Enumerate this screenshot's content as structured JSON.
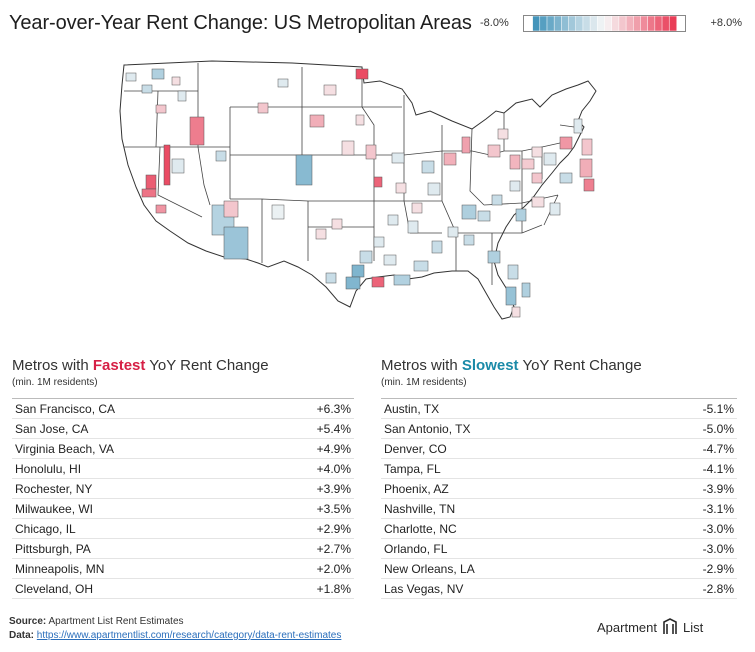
{
  "title": "Year-over-Year Rent Change: US Metropolitan Areas",
  "legend": {
    "min_label": "-8.0%",
    "max_label": "+8.0%",
    "min_color": "#3a8fb7",
    "mid_color": "#f7f7f7",
    "max_color": "#e8334f"
  },
  "map_colors": {
    "state_stroke": "#333333",
    "county_stroke": "#777777",
    "land": "#ffffff"
  },
  "fastest": {
    "head_pre": "Metros with ",
    "head_hl": "Fastest",
    "head_post": " YoY Rent Change",
    "sub": "(min. 1M residents)",
    "rows": [
      {
        "name": "San Francisco, CA",
        "value": "+6.3%"
      },
      {
        "name": "San Jose, CA",
        "value": "+5.4%"
      },
      {
        "name": "Virginia Beach, VA",
        "value": "+4.9%"
      },
      {
        "name": "Honolulu, HI",
        "value": "+4.0%"
      },
      {
        "name": "Rochester, NY",
        "value": "+3.9%"
      },
      {
        "name": "Milwaukee, WI",
        "value": "+3.5%"
      },
      {
        "name": "Chicago, IL",
        "value": "+2.9%"
      },
      {
        "name": "Pittsburgh, PA",
        "value": "+2.7%"
      },
      {
        "name": "Minneapolis, MN",
        "value": "+2.0%"
      },
      {
        "name": "Cleveland, OH",
        "value": "+1.8%"
      }
    ]
  },
  "slowest": {
    "head_pre": "Metros with ",
    "head_hl": "Slowest",
    "head_post": " YoY Rent Change",
    "sub": "(min. 1M residents)",
    "rows": [
      {
        "name": "Austin, TX",
        "value": "-5.1%"
      },
      {
        "name": "San Antonio, TX",
        "value": "-5.0%"
      },
      {
        "name": "Denver, CO",
        "value": "-4.7%"
      },
      {
        "name": "Tampa, FL",
        "value": "-4.1%"
      },
      {
        "name": "Phoenix, AZ",
        "value": "-3.9%"
      },
      {
        "name": "Nashville, TN",
        "value": "-3.1%"
      },
      {
        "name": "Charlotte, NC",
        "value": "-3.0%"
      },
      {
        "name": "Orlando, FL",
        "value": "-3.0%"
      },
      {
        "name": "New Orleans, LA",
        "value": "-2.9%"
      },
      {
        "name": "Las Vegas, NV",
        "value": "-2.8%"
      }
    ]
  },
  "footer": {
    "source_label": "Source:",
    "source_text": " Apartment List Rent Estimates",
    "data_label": "Data:",
    "data_link": "https://www.apartmentlist.com/research/category/data-rent-estimates"
  },
  "logo": {
    "left": "Apartment",
    "right": "List"
  },
  "chart_data": {
    "type": "table",
    "title": "Year-over-Year Rent Change: US Metropolitan Areas",
    "color_scale": {
      "min": -8.0,
      "max": 8.0,
      "unit": "%"
    },
    "series": [
      {
        "name": "Metros with Fastest YoY Rent Change",
        "categories": [
          "San Francisco, CA",
          "San Jose, CA",
          "Virginia Beach, VA",
          "Honolulu, HI",
          "Rochester, NY",
          "Milwaukee, WI",
          "Chicago, IL",
          "Pittsburgh, PA",
          "Minneapolis, MN",
          "Cleveland, OH"
        ],
        "values": [
          6.3,
          5.4,
          4.9,
          4.0,
          3.9,
          3.5,
          2.9,
          2.7,
          2.0,
          1.8
        ]
      },
      {
        "name": "Metros with Slowest YoY Rent Change",
        "categories": [
          "Austin, TX",
          "San Antonio, TX",
          "Denver, CO",
          "Tampa, FL",
          "Phoenix, AZ",
          "Nashville, TN",
          "Charlotte, NC",
          "Orlando, FL",
          "New Orleans, LA",
          "Las Vegas, NV"
        ],
        "values": [
          -5.1,
          -5.0,
          -4.7,
          -4.1,
          -3.9,
          -3.1,
          -3.0,
          -3.0,
          -2.9,
          -2.8
        ]
      }
    ]
  }
}
